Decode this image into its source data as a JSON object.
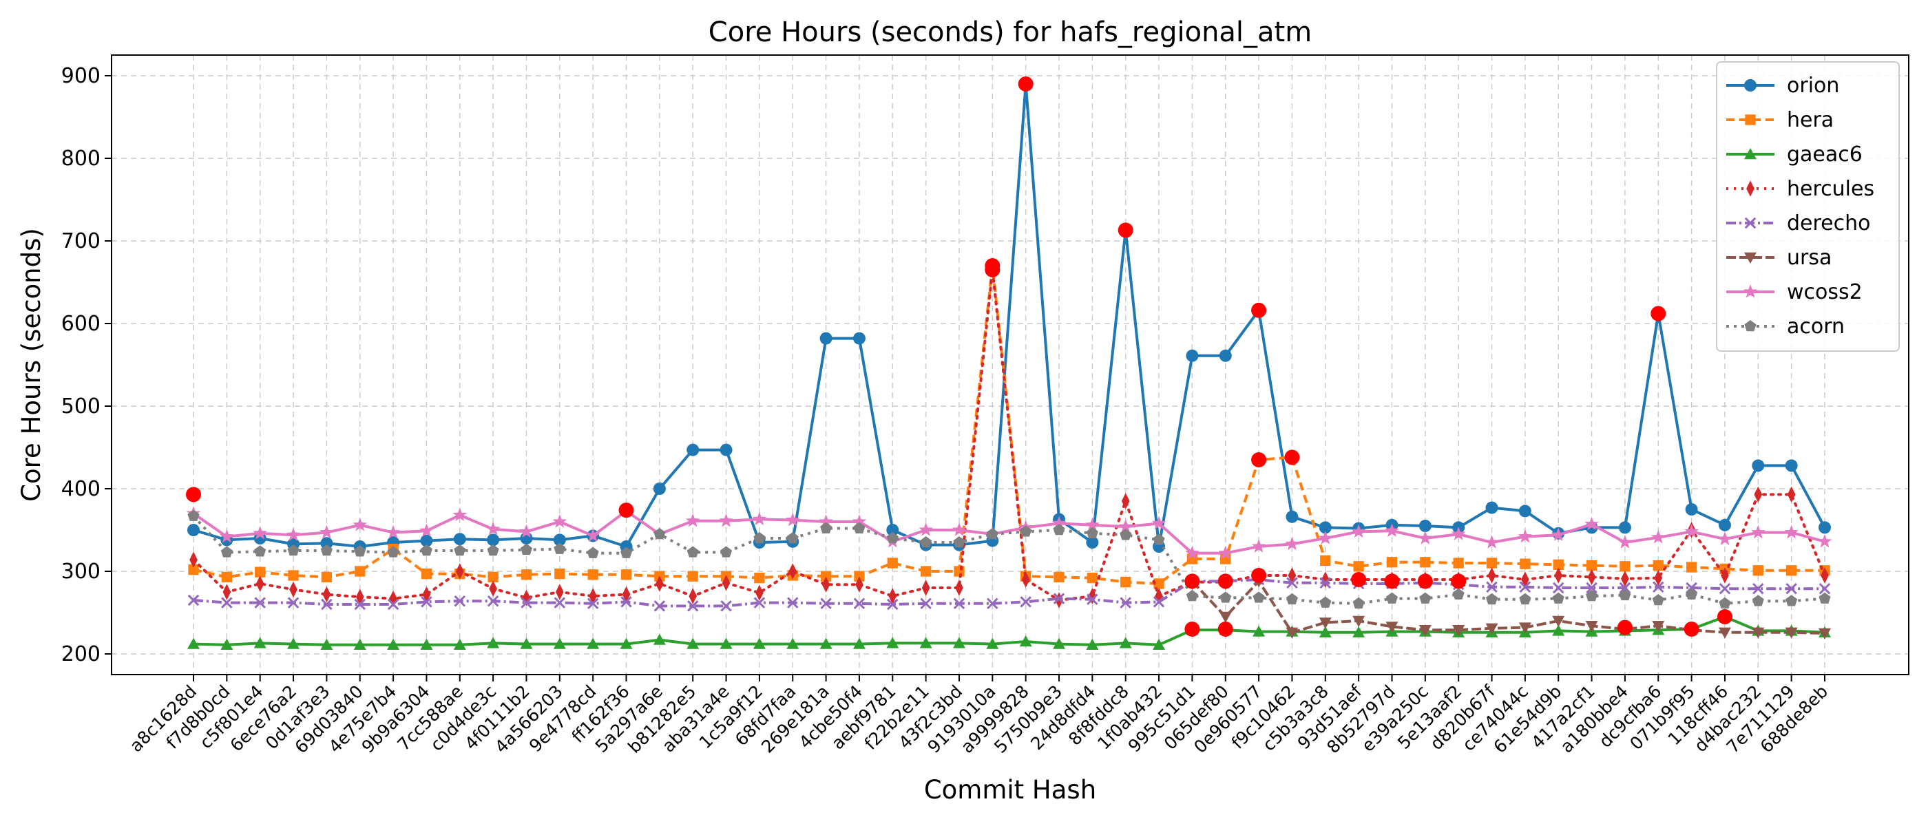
{
  "chart_data": {
    "type": "line",
    "title": "Core Hours (seconds) for hafs_regional_atm",
    "xlabel": "Commit Hash",
    "ylabel": "Core Hours (seconds)",
    "ylim": [
      175,
      925
    ],
    "yticks": [
      200,
      300,
      400,
      500,
      600,
      700,
      800,
      900
    ],
    "grid": true,
    "legend_position": "top-right",
    "categories": [
      "a8c1628d",
      "f7d8b0cd",
      "c5f801e4",
      "6ece76a2",
      "0d1af3e3",
      "69d03840",
      "4e75e7b4",
      "9b9a6304",
      "7cc588ae",
      "c0d4de3c",
      "4f0111b2",
      "4a566203",
      "9e4778cd",
      "ff162f36",
      "5a297a6e",
      "b81282e5",
      "aba31a4e",
      "1c5a9f12",
      "68fd7faa",
      "269e181a",
      "4cbe50f4",
      "aebf9781",
      "f22b2e11",
      "43f2c3bd",
      "9193010a",
      "a9999828",
      "5750b9e3",
      "24d8dfd4",
      "8f8fddc8",
      "1f0ab432",
      "995c51d1",
      "065def80",
      "0e960577",
      "f9c10462",
      "c5b3a3c8",
      "93d51aef",
      "8b52797d",
      "e39a250c",
      "5e13aaf2",
      "d820b67f",
      "ce74044c",
      "61e54d9b",
      "417a2cf1",
      "a180bbe4",
      "dc9cfba6",
      "071b9f95",
      "118cff46",
      "d4bac232",
      "7e711129",
      "688de8eb"
    ],
    "series": [
      {
        "name": "orion",
        "color": "#1f77b4",
        "dash": "",
        "marker": "circle",
        "values": [
          350,
          338,
          340,
          333,
          334,
          330,
          335,
          337,
          339,
          338,
          340,
          338,
          343,
          330,
          400,
          447,
          447,
          335,
          336,
          582,
          582,
          350,
          332,
          332,
          337,
          890,
          363,
          335,
          713,
          330,
          561,
          561,
          616,
          366,
          353,
          352,
          356,
          355,
          353,
          377,
          373,
          346,
          353,
          353,
          612,
          375,
          356,
          428,
          428,
          353
        ]
      },
      {
        "name": "hera",
        "color": "#ff7f0e",
        "dash": "12 7",
        "marker": "square",
        "values": [
          302,
          293,
          299,
          295,
          293,
          300,
          327,
          297,
          297,
          293,
          296,
          297,
          296,
          296,
          294,
          294,
          294,
          292,
          295,
          294,
          294,
          310,
          300,
          300,
          670,
          294,
          293,
          292,
          287,
          285,
          315,
          315,
          435,
          438,
          313,
          306,
          311,
          311,
          310,
          310,
          309,
          308,
          307,
          306,
          307,
          305,
          303,
          301,
          301,
          301
        ]
      },
      {
        "name": "gaeac6",
        "color": "#2ca02c",
        "dash": "",
        "marker": "triangle-up",
        "values": [
          212,
          211,
          213,
          212,
          211,
          211,
          211,
          211,
          211,
          213,
          212,
          212,
          212,
          212,
          217,
          212,
          212,
          212,
          212,
          212,
          212,
          213,
          213,
          213,
          212,
          215,
          212,
          211,
          213,
          211,
          229,
          229,
          227,
          227,
          226,
          226,
          227,
          227,
          226,
          226,
          226,
          228,
          227,
          228,
          229,
          230,
          245,
          228,
          228,
          226
        ]
      },
      {
        "name": "hercules",
        "color": "#d62728",
        "dash": "3 8",
        "marker": "diamond",
        "values": [
          314,
          275,
          285,
          278,
          272,
          269,
          267,
          272,
          300,
          279,
          268,
          275,
          270,
          272,
          285,
          270,
          286,
          274,
          300,
          284,
          284,
          270,
          280,
          280,
          665,
          290,
          265,
          270,
          385,
          270,
          287,
          287,
          295,
          295,
          290,
          290,
          290,
          290,
          290,
          295,
          290,
          295,
          293,
          291,
          292,
          350,
          295,
          393,
          393,
          295
        ]
      },
      {
        "name": "derecho",
        "color": "#9467bd",
        "dash": "14 5 3 5",
        "marker": "x",
        "values": [
          265,
          262,
          262,
          262,
          260,
          260,
          260,
          263,
          264,
          264,
          262,
          262,
          261,
          263,
          258,
          258,
          258,
          262,
          262,
          261,
          261,
          260,
          261,
          261,
          261,
          263,
          267,
          266,
          262,
          263,
          288,
          288,
          290,
          286,
          286,
          285,
          285,
          286,
          284,
          281,
          281,
          280,
          280,
          280,
          281,
          280,
          279,
          279,
          279,
          279
        ]
      },
      {
        "name": "ursa",
        "color": "#8c564b",
        "dash": "14 5",
        "marker": "triangle-down",
        "values": [
          null,
          null,
          null,
          null,
          null,
          null,
          null,
          null,
          null,
          null,
          null,
          null,
          null,
          null,
          null,
          null,
          null,
          null,
          null,
          null,
          null,
          null,
          null,
          null,
          null,
          null,
          null,
          null,
          null,
          null,
          288,
          245,
          288,
          226,
          238,
          240,
          233,
          229,
          229,
          231,
          232,
          240,
          234,
          230,
          234,
          229,
          226,
          226,
          226,
          225
        ]
      },
      {
        "name": "wcoss2",
        "color": "#e377c2",
        "dash": "",
        "marker": "star",
        "values": [
          370,
          342,
          346,
          344,
          347,
          356,
          347,
          349,
          368,
          351,
          348,
          360,
          343,
          373,
          345,
          361,
          361,
          363,
          362,
          360,
          360,
          336,
          350,
          350,
          345,
          353,
          358,
          356,
          354,
          358,
          322,
          322,
          330,
          333,
          340,
          348,
          349,
          340,
          345,
          335,
          342,
          344,
          357,
          335,
          341,
          348,
          339,
          347,
          347,
          336
        ]
      },
      {
        "name": "acorn",
        "color": "#7f7f7f",
        "dash": "4 7",
        "marker": "pentagon",
        "values": [
          367,
          323,
          324,
          325,
          325,
          324,
          323,
          325,
          325,
          325,
          326,
          327,
          322,
          322,
          345,
          323,
          323,
          340,
          340,
          352,
          352,
          340,
          335,
          335,
          345,
          348,
          350,
          346,
          344,
          338,
          270,
          268,
          268,
          266,
          262,
          261,
          267,
          267,
          272,
          266,
          266,
          267,
          270,
          271,
          265,
          272,
          261,
          264,
          264,
          267
        ]
      }
    ],
    "highlight_marker_color": "#ff0000",
    "highlights": [
      {
        "x": "a8c1628d",
        "y": 393
      },
      {
        "x": "ff162f36",
        "y": 374
      },
      {
        "x": "9193010a",
        "y": 670
      },
      {
        "x": "9193010a",
        "y": 665
      },
      {
        "x": "a9999828",
        "y": 890
      },
      {
        "x": "8f8fddc8",
        "y": 713
      },
      {
        "x": "995c51d1",
        "y": 288
      },
      {
        "x": "995c51d1",
        "y": 230
      },
      {
        "x": "065def80",
        "y": 288
      },
      {
        "x": "065def80",
        "y": 230
      },
      {
        "x": "0e960577",
        "y": 616
      },
      {
        "x": "0e960577",
        "y": 435
      },
      {
        "x": "0e960577",
        "y": 295
      },
      {
        "x": "f9c10462",
        "y": 438
      },
      {
        "x": "93d51aef",
        "y": 290
      },
      {
        "x": "8b52797d",
        "y": 288
      },
      {
        "x": "e39a250c",
        "y": 288
      },
      {
        "x": "5e13aaf2",
        "y": 288
      },
      {
        "x": "a180bbe4",
        "y": 232
      },
      {
        "x": "dc9cfba6",
        "y": 612
      },
      {
        "x": "071b9f95",
        "y": 230
      },
      {
        "x": "118cff46",
        "y": 245
      }
    ]
  }
}
